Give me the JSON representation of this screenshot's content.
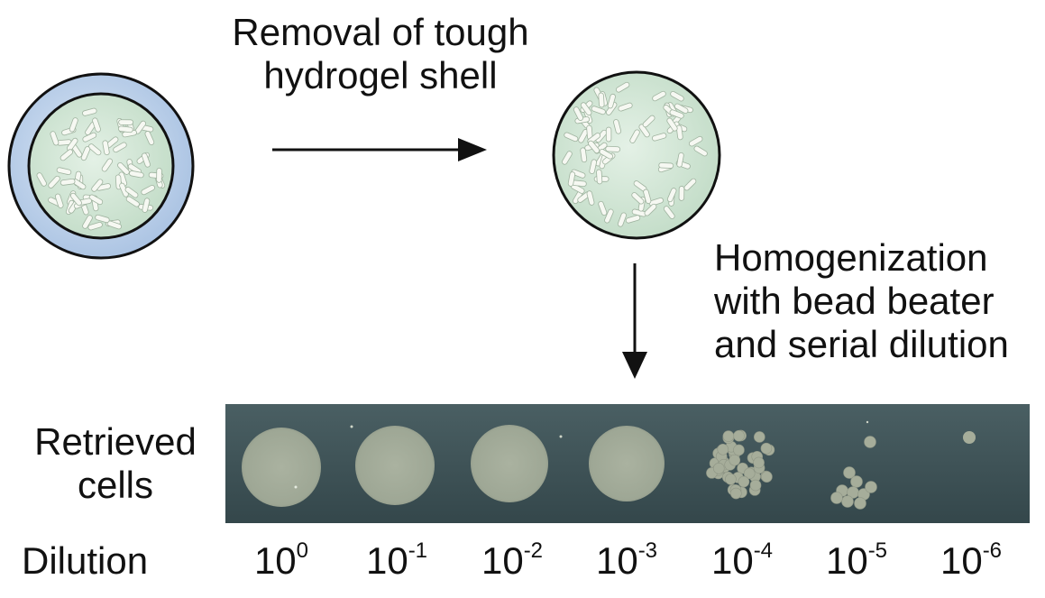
{
  "step_remove": [
    "Removal of tough",
    "hydrogel shell"
  ],
  "step_homogenize": [
    "Homogenization",
    "with bead beater",
    "and serial dilution"
  ],
  "retrieved": [
    "Retrieved",
    "cells"
  ],
  "dilution_label": "Dilution",
  "dilutions": [
    {
      "base": "10",
      "exp": "0"
    },
    {
      "base": "10",
      "exp": "-1"
    },
    {
      "base": "10",
      "exp": "-2"
    },
    {
      "base": "10",
      "exp": "-3"
    },
    {
      "base": "10",
      "exp": "-4"
    },
    {
      "base": "10",
      "exp": "-5"
    },
    {
      "base": "10",
      "exp": "-6"
    }
  ],
  "colors": {
    "shell": "#b7cde6",
    "core": "#cfe5d4",
    "cell": "#f6f8f2",
    "plate": "#3c5256",
    "colony": "#a6ad9a"
  }
}
